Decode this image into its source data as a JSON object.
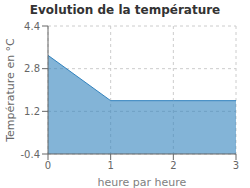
{
  "chart_data": {
    "type": "area",
    "title": "Evolution de la température",
    "xlabel": "heure par heure",
    "ylabel": "Température en °C",
    "x": [
      0,
      1,
      2,
      3
    ],
    "values": [
      3.3,
      1.6,
      1.6,
      1.6
    ],
    "xlim": [
      0,
      3
    ],
    "ylim": [
      -0.4,
      4.4
    ],
    "xticks": [
      0,
      1,
      2,
      3
    ],
    "yticks": [
      -0.4,
      1.2,
      2.8,
      4.4
    ],
    "grid": true
  }
}
